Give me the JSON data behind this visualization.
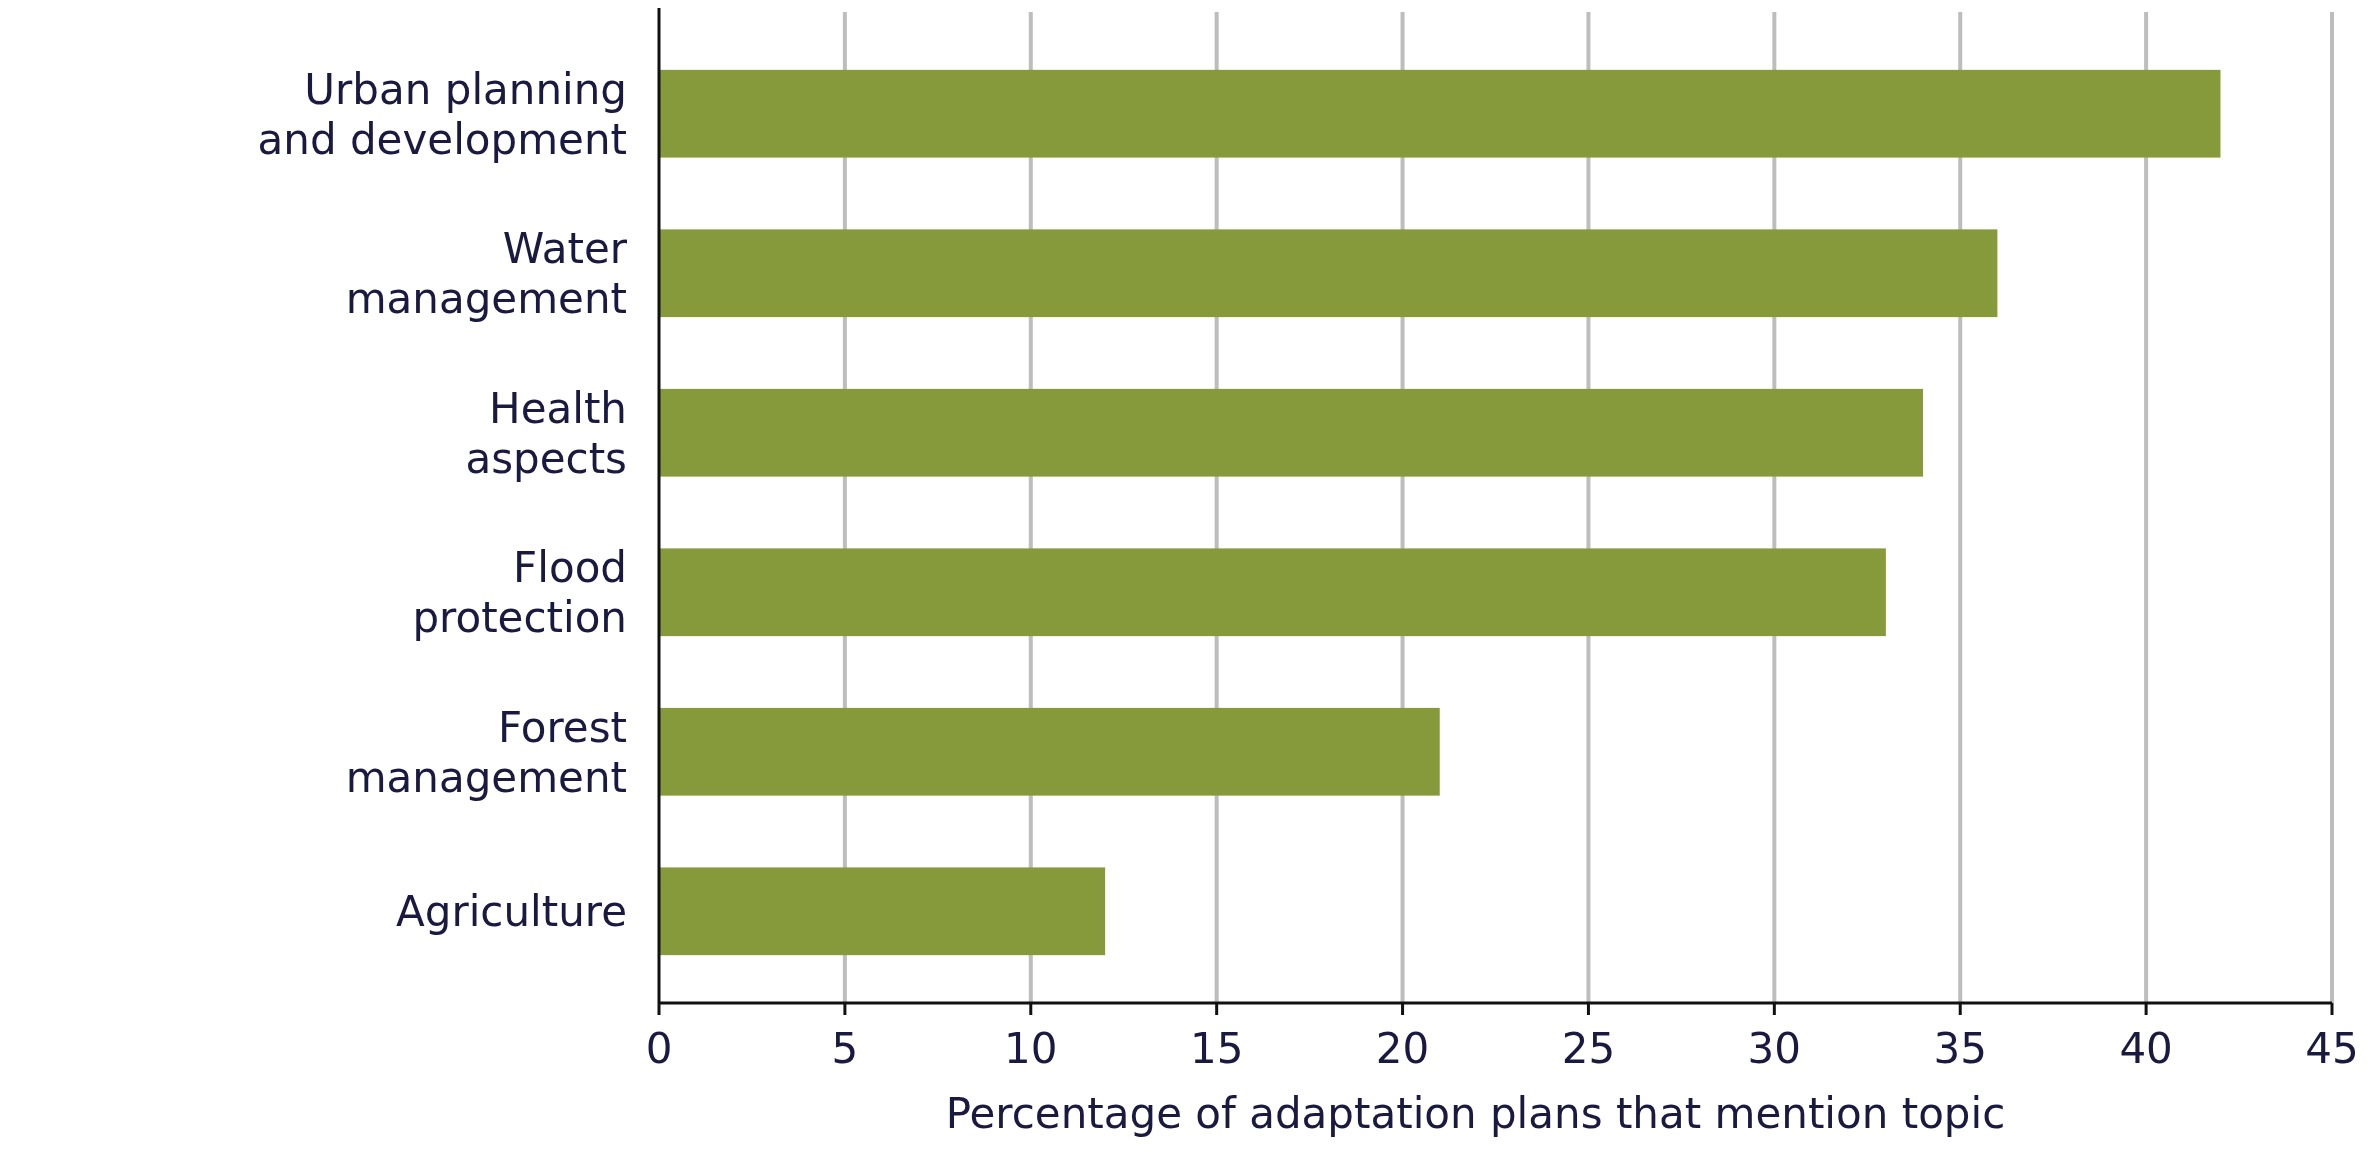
{
  "chart_data": {
    "type": "bar",
    "orientation": "horizontal",
    "xlabel": "Percentage of adaptation plans that mention topic",
    "categories": [
      "Urban planning and development",
      "Water management",
      "Health aspects",
      "Flood protection",
      "Forest management",
      "Agriculture"
    ],
    "values": [
      42,
      36,
      34,
      33,
      21,
      12
    ],
    "color": "#869a3b",
    "xlim": [
      0,
      45
    ],
    "xticks": [
      0,
      5,
      10,
      15,
      20,
      25,
      30,
      35,
      40,
      45
    ],
    "grid": "x"
  }
}
